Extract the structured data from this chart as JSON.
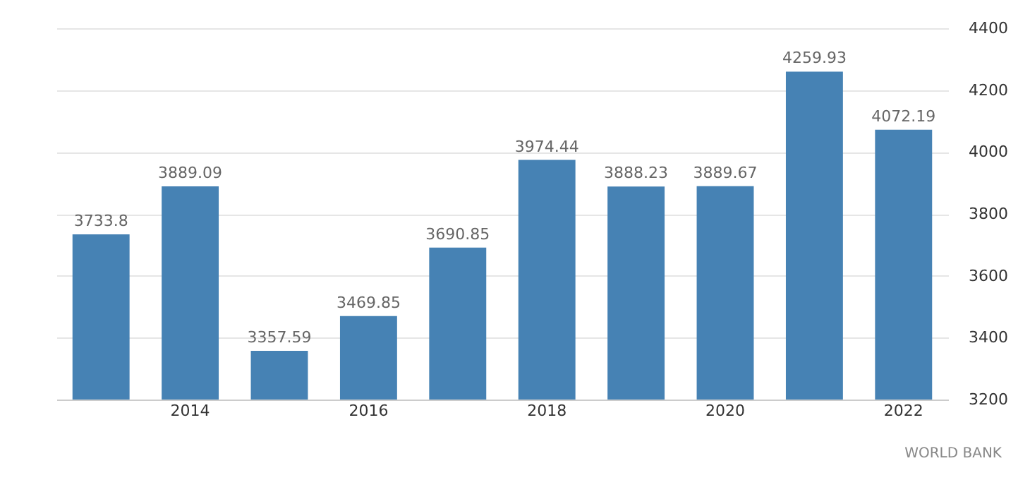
{
  "chart_data": {
    "type": "bar",
    "categories": [
      null,
      "2014",
      null,
      "2016",
      null,
      "2018",
      null,
      "2020",
      null,
      "2022"
    ],
    "values": [
      3733.8,
      3889.09,
      3357.59,
      3469.85,
      3690.85,
      3974.44,
      3888.23,
      3889.67,
      4259.93,
      4072.19
    ],
    "color": "#4682b4",
    "ylim": [
      3200,
      4400
    ],
    "yticks": [
      3200,
      3400,
      3600,
      3800,
      4000,
      4200,
      4400
    ],
    "grid": "y",
    "data_labels": true,
    "annotations": [
      "WORLD BANK"
    ]
  }
}
